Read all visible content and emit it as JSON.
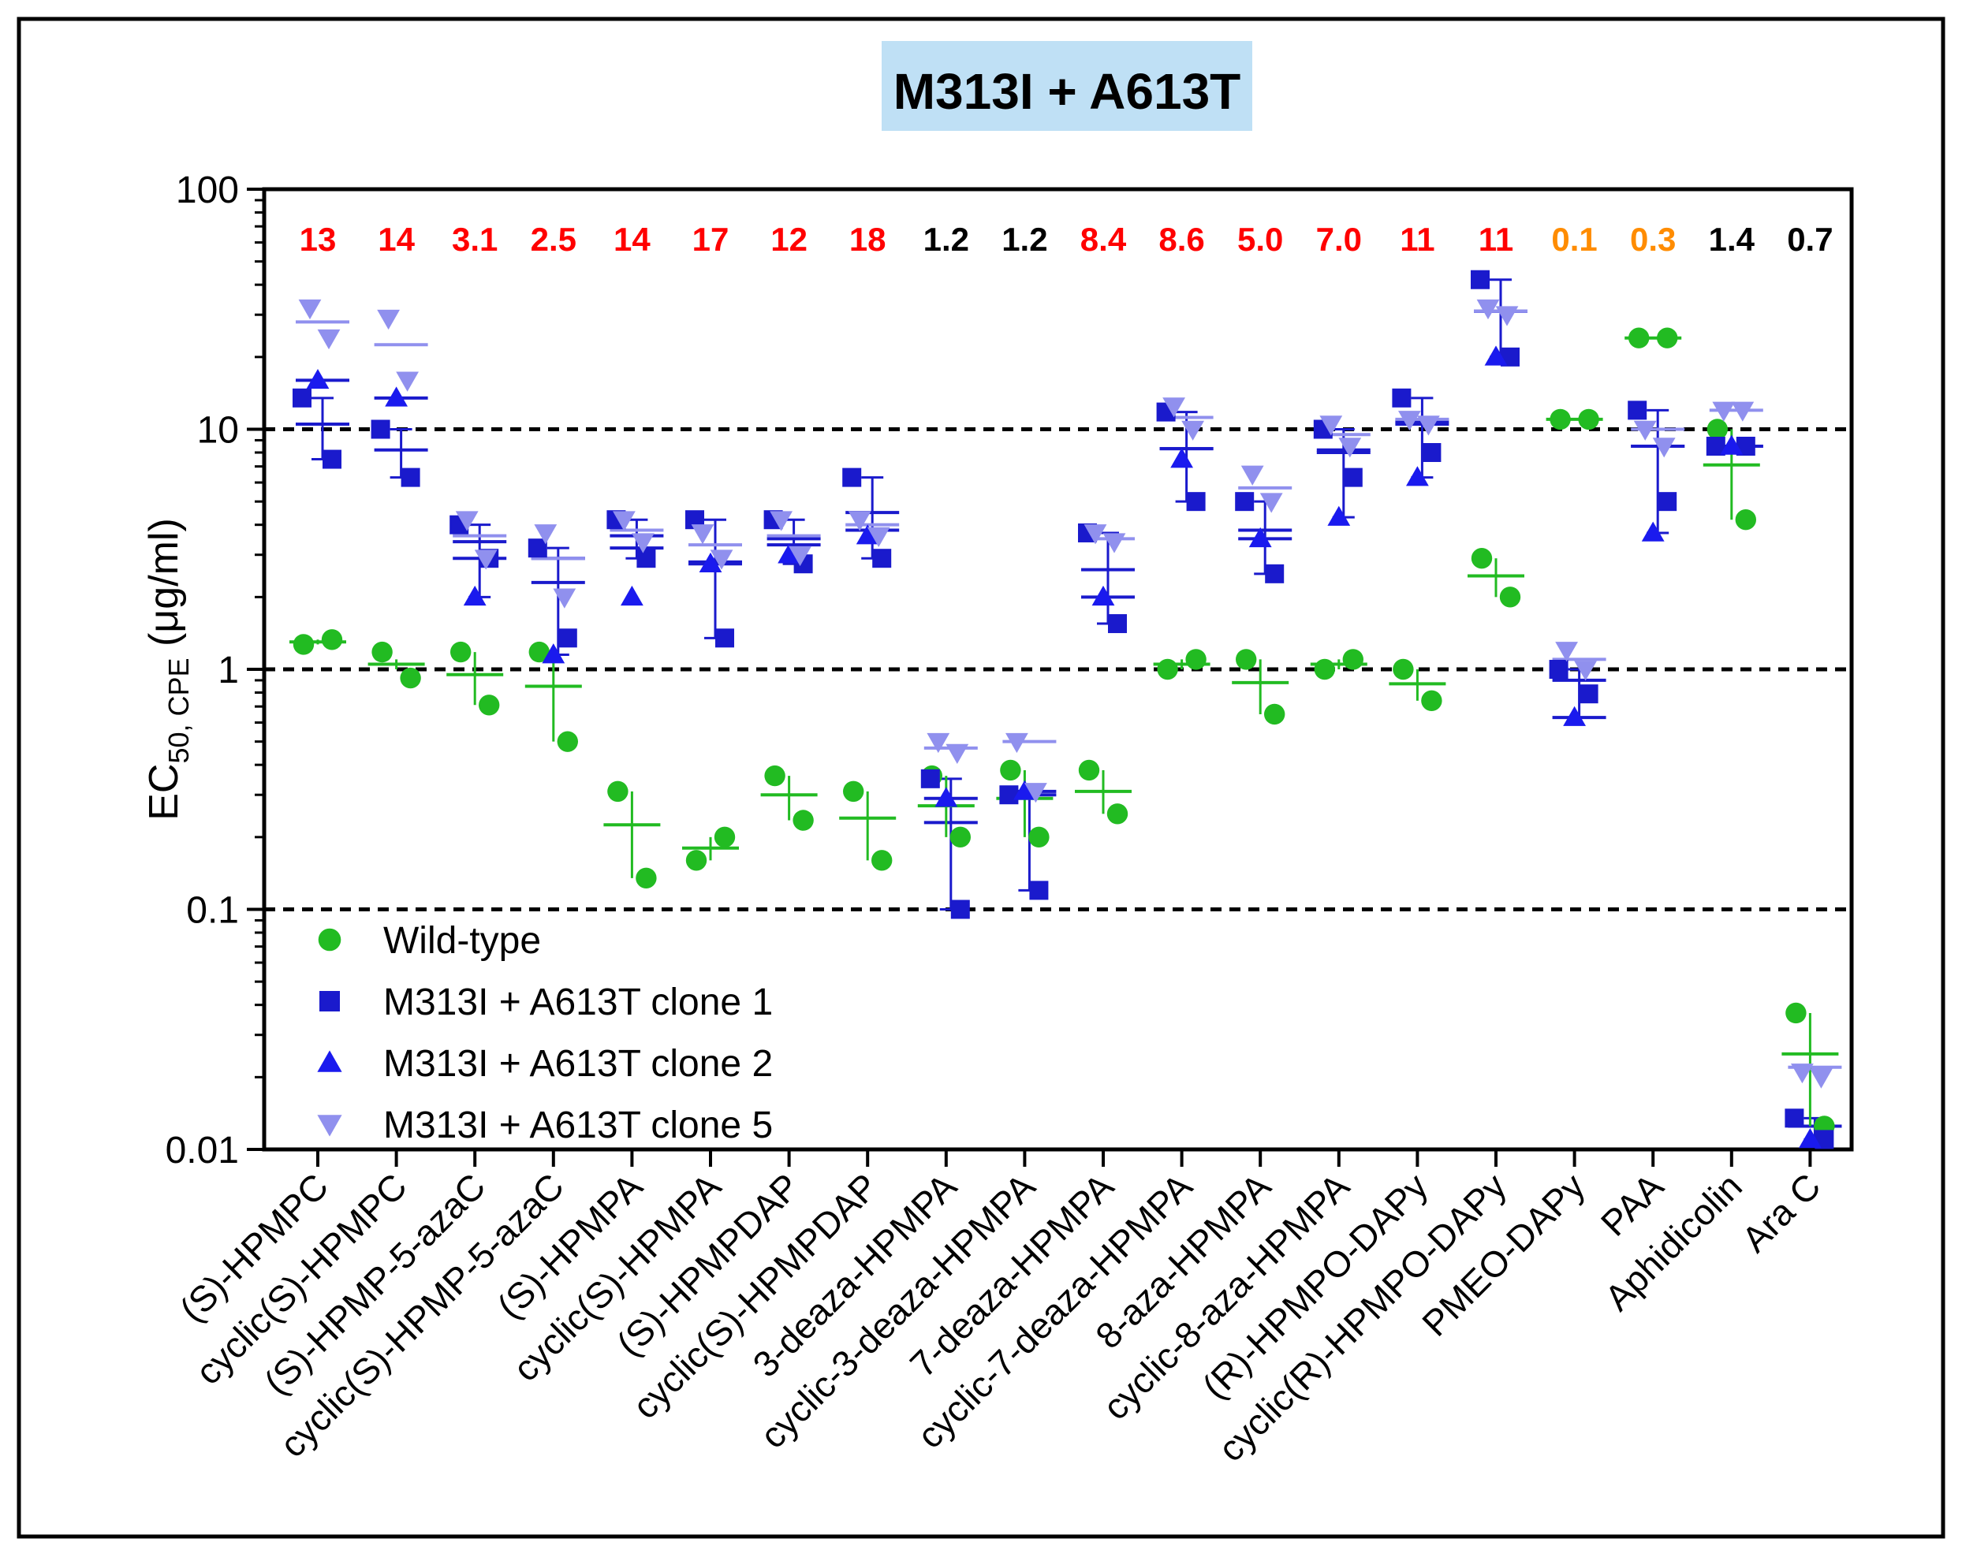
{
  "chart_data": {
    "type": "scatter",
    "title": "M313I + A613T",
    "ylabel": {
      "main": "EC",
      "sub": "50, CPE",
      "unit": "(μg/ml)"
    },
    "yscale": "log",
    "ylim": [
      0.01,
      100
    ],
    "yticks": [
      {
        "value": 100,
        "label": "100"
      },
      {
        "value": 10,
        "label": "10"
      },
      {
        "value": 1,
        "label": "1"
      },
      {
        "value": 0.1,
        "label": "0.1"
      },
      {
        "value": 0.01,
        "label": "0.01"
      }
    ],
    "reference_lines": [
      10,
      1,
      0.1
    ],
    "legend_position": "lower-left",
    "categories": [
      "(S)-HPMPC",
      "cyclic(S)-HPMPC",
      "(S)-HPMP-5-azaC",
      "cyclic(S)-HPMP-5-azaC",
      "(S)-HPMPA",
      "cyclic(S)-HPMPA",
      "(S)-HPMPDAP",
      "cyclic(S)-HPMPDAP",
      "3-deaza-HPMPA",
      "cyclic-3-deaza-HPMPA",
      "7-deaza-HPMPA",
      "cyclic-7-deaza-HPMPA",
      "8-aza-HPMPA",
      "cyclic-8-aza-HPMPA",
      "(R)-HPMPO-DAPy",
      "cyclic(R)-HPMPO-DAPy",
      "PMEO-DAPy",
      "PAA",
      "Aphidicolin",
      "Ara C"
    ],
    "fold_labels": [
      {
        "text": "13",
        "color": "#ff0000"
      },
      {
        "text": "14",
        "color": "#ff0000"
      },
      {
        "text": "3.1",
        "color": "#ff0000"
      },
      {
        "text": "2.5",
        "color": "#ff0000"
      },
      {
        "text": "14",
        "color": "#ff0000"
      },
      {
        "text": "17",
        "color": "#ff0000"
      },
      {
        "text": "12",
        "color": "#ff0000"
      },
      {
        "text": "18",
        "color": "#ff0000"
      },
      {
        "text": "1.2",
        "color": "#000000"
      },
      {
        "text": "1.2",
        "color": "#000000"
      },
      {
        "text": "8.4",
        "color": "#ff0000"
      },
      {
        "text": "8.6",
        "color": "#ff0000"
      },
      {
        "text": "5.0",
        "color": "#ff0000"
      },
      {
        "text": "7.0",
        "color": "#ff0000"
      },
      {
        "text": "11",
        "color": "#ff0000"
      },
      {
        "text": "11",
        "color": "#ff0000"
      },
      {
        "text": "0.1",
        "color": "#ff8c00"
      },
      {
        "text": "0.3",
        "color": "#ff8c00"
      },
      {
        "text": "1.4",
        "color": "#000000"
      },
      {
        "text": "0.7",
        "color": "#000000"
      }
    ],
    "series": [
      {
        "name": "Wild-type",
        "marker": "circle",
        "color": "#22bb22",
        "points": [
          [
            1.27,
            1.33
          ],
          [
            1.18,
            0.92
          ],
          [
            1.18,
            0.71
          ],
          [
            1.18,
            0.5
          ],
          [
            0.31,
            0.135
          ],
          [
            0.16,
            0.2
          ],
          [
            0.36,
            0.235
          ],
          [
            0.31,
            0.16
          ],
          [
            0.36,
            0.2
          ],
          [
            0.38,
            0.2
          ],
          [
            0.38,
            0.25
          ],
          [
            1.0,
            1.1
          ],
          [
            1.1,
            0.65
          ],
          [
            1.0,
            1.1
          ],
          [
            1.0,
            0.74
          ],
          [
            2.9,
            2.0
          ],
          [
            11.0,
            11.0
          ],
          [
            24.0,
            24.0
          ],
          [
            10.0,
            4.2
          ],
          [
            0.037,
            0.0125
          ]
        ],
        "mean": [
          1.3,
          1.05,
          0.95,
          0.85,
          0.225,
          0.18,
          0.3,
          0.24,
          0.27,
          0.29,
          0.31,
          1.05,
          0.88,
          1.05,
          0.87,
          2.45,
          11.0,
          24.0,
          7.1,
          0.025
        ],
        "error": [
          [
            1.27,
            1.33
          ],
          [
            1.0,
            1.1
          ],
          [
            0.71,
            1.18
          ],
          [
            0.5,
            1.18
          ],
          [
            0.135,
            0.31
          ],
          [
            0.16,
            0.2
          ],
          [
            0.235,
            0.36
          ],
          [
            0.16,
            0.31
          ],
          [
            0.2,
            0.36
          ],
          [
            0.2,
            0.38
          ],
          [
            0.25,
            0.38
          ],
          [
            1.0,
            1.1
          ],
          [
            0.65,
            1.1
          ],
          [
            1.0,
            1.1
          ],
          [
            0.74,
            1.0
          ],
          [
            2.0,
            2.9
          ],
          [
            11.0,
            11.0
          ],
          [
            24.0,
            24.0
          ],
          [
            4.2,
            10.0
          ],
          [
            0.0125,
            0.037
          ]
        ]
      },
      {
        "name": "M313I + A613T clone 1",
        "marker": "square",
        "color": "#1a1acc",
        "points": [
          [
            13.5,
            7.5
          ],
          [
            10.0,
            6.3
          ],
          [
            4.0,
            2.9
          ],
          [
            3.2,
            1.35
          ],
          [
            4.2,
            2.9
          ],
          [
            4.2,
            1.35
          ],
          [
            4.2,
            2.75
          ],
          [
            6.3,
            2.9
          ],
          [
            0.35,
            0.1
          ],
          [
            0.3,
            0.12
          ],
          [
            3.7,
            1.55
          ],
          [
            11.8,
            5.0
          ],
          [
            5.0,
            2.5
          ],
          [
            10.0,
            6.3
          ],
          [
            13.5,
            8.0
          ],
          [
            42.0,
            20.0
          ],
          [
            1.0,
            0.79
          ],
          [
            12.0,
            5.0
          ],
          [
            8.5,
            8.5
          ],
          [
            0.0135,
            0.011
          ]
        ]
      },
      {
        "name": "M313I + A613T clone 2",
        "marker": "triangle",
        "color": "#1a1aee",
        "points": [
          [
            16.0
          ],
          [
            13.5
          ],
          [
            2.0
          ],
          [
            1.15
          ],
          [
            2.0
          ],
          [
            2.75
          ],
          [
            3.0
          ],
          [
            3.6
          ],
          [
            0.29
          ],
          [
            0.31
          ],
          [
            2.0
          ],
          [
            7.5
          ],
          [
            3.5
          ],
          [
            4.3
          ],
          [
            6.3
          ],
          [
            20.0
          ],
          [
            0.63
          ],
          [
            3.7
          ],
          [
            8.5
          ],
          [
            0.011
          ]
        ]
      },
      {
        "name": "M313I + A613T clone 5",
        "marker": "triangle-down",
        "color": "#9090ee",
        "points": [
          [
            32.0,
            24.0
          ],
          [
            29.0,
            16.0
          ],
          [
            4.2,
            2.9
          ],
          [
            3.7,
            2.0
          ],
          [
            4.2,
            3.4
          ],
          [
            3.7,
            2.9
          ],
          [
            4.2,
            3.0
          ],
          [
            4.2,
            3.6
          ],
          [
            0.5,
            0.45
          ],
          [
            0.5,
            0.31
          ],
          [
            3.7,
            3.4
          ],
          [
            12.5,
            10.0
          ],
          [
            6.5,
            5.0
          ],
          [
            10.5,
            8.5
          ],
          [
            11.0,
            10.5
          ],
          [
            32.0,
            30.0
          ],
          [
            1.2,
            1.0
          ],
          [
            10.0,
            8.5
          ],
          [
            12.0,
            12.0
          ],
          [
            0.021,
            0.02
          ]
        ]
      }
    ],
    "mutant_error_bars": {
      "lines": [
        {
          "color": "#1a1acc",
          "mean": [
            10.5,
            8.2,
            2.9,
            2.3,
            3.2,
            2.75,
            3.3,
            3.8,
            0.29,
            0.3,
            2.0,
            8.3,
            3.5,
            8.0,
            10.5,
            31.0,
            0.9,
            8.5,
            8.5,
            0.0125
          ],
          "error": [
            [
              7.5,
              13.5
            ],
            [
              6.3,
              10.0
            ],
            [
              2.0,
              4.0
            ],
            [
              1.15,
              3.2
            ],
            [
              2.9,
              4.2
            ],
            [
              1.35,
              4.2
            ],
            [
              2.75,
              4.2
            ],
            [
              2.9,
              6.3
            ],
            [
              0.1,
              0.35
            ],
            [
              0.12,
              0.31
            ],
            [
              1.55,
              3.7
            ],
            [
              5.0,
              11.8
            ],
            [
              2.5,
              5.0
            ],
            [
              4.3,
              10.0
            ],
            [
              6.3,
              13.5
            ],
            [
              20.0,
              42.0
            ],
            [
              0.63,
              1.0
            ],
            [
              3.7,
              12.0
            ],
            [
              8.5,
              8.5
            ],
            [
              0.011,
              0.0135
            ]
          ]
        },
        {
          "color": "#1a1acc",
          "mean": [
            16.0,
            13.5,
            3.4,
            2.9,
            3.6,
            2.8,
            3.5,
            4.5,
            0.23,
            0.31,
            2.6,
            8.3,
            3.8,
            8.2,
            10.8,
            31.0,
            0.63,
            8.5,
            8.5,
            0.0125
          ]
        },
        {
          "color": "#9090ee",
          "mean": [
            28.0,
            22.5,
            3.6,
            2.9,
            3.8,
            3.3,
            3.6,
            4.0,
            0.47,
            0.5,
            3.5,
            11.2,
            5.7,
            9.5,
            11.0,
            31.0,
            1.1,
            10.0,
            12.0,
            0.022
          ]
        }
      ]
    }
  },
  "legend": [
    {
      "label": "Wild-type",
      "marker": "circle",
      "color": "#22bb22"
    },
    {
      "label": "M313I + A613T clone 1",
      "marker": "square",
      "color": "#1a1acc"
    },
    {
      "label": "M313I + A613T clone 2",
      "marker": "triangle",
      "color": "#1a1aee"
    },
    {
      "label": "M313I + A613T clone 5",
      "marker": "triangle-down",
      "color": "#9090ee"
    }
  ],
  "title_bg": "#bfe0f5"
}
